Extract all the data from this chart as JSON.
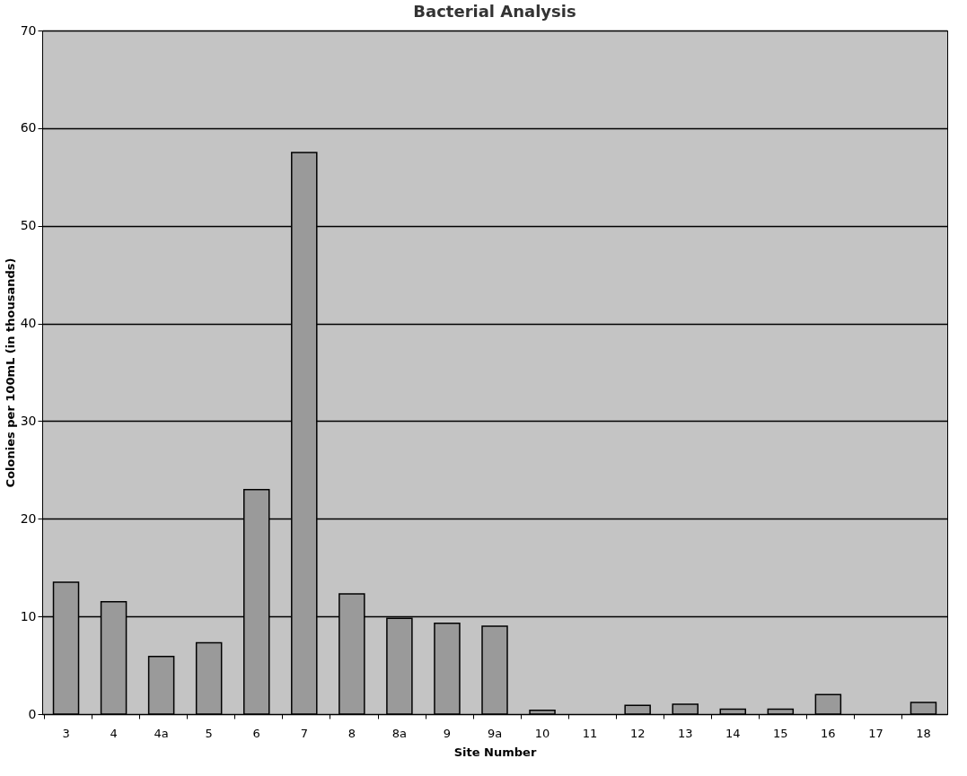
{
  "chart_data": {
    "type": "bar",
    "title": "Bacterial Analysis",
    "xlabel": "Site Number",
    "ylabel": "Colonies per 100mL (in thousands)",
    "categories": [
      "3",
      "4",
      "4a",
      "5",
      "6",
      "7",
      "8",
      "8a",
      "9",
      "9a",
      "10",
      "11",
      "12",
      "13",
      "14",
      "15",
      "16",
      "17",
      "18"
    ],
    "values": [
      13.5,
      11.5,
      5.9,
      7.3,
      23,
      57.5,
      12.3,
      9.8,
      9.3,
      9,
      0.4,
      0,
      0.9,
      1,
      0.5,
      0.5,
      2,
      0,
      1.2
    ],
    "color": "#9a9a9a",
    "ylim": [
      0,
      70
    ],
    "yticks": [
      0,
      10,
      20,
      30,
      40,
      50,
      60,
      70
    ],
    "grid": "y"
  }
}
